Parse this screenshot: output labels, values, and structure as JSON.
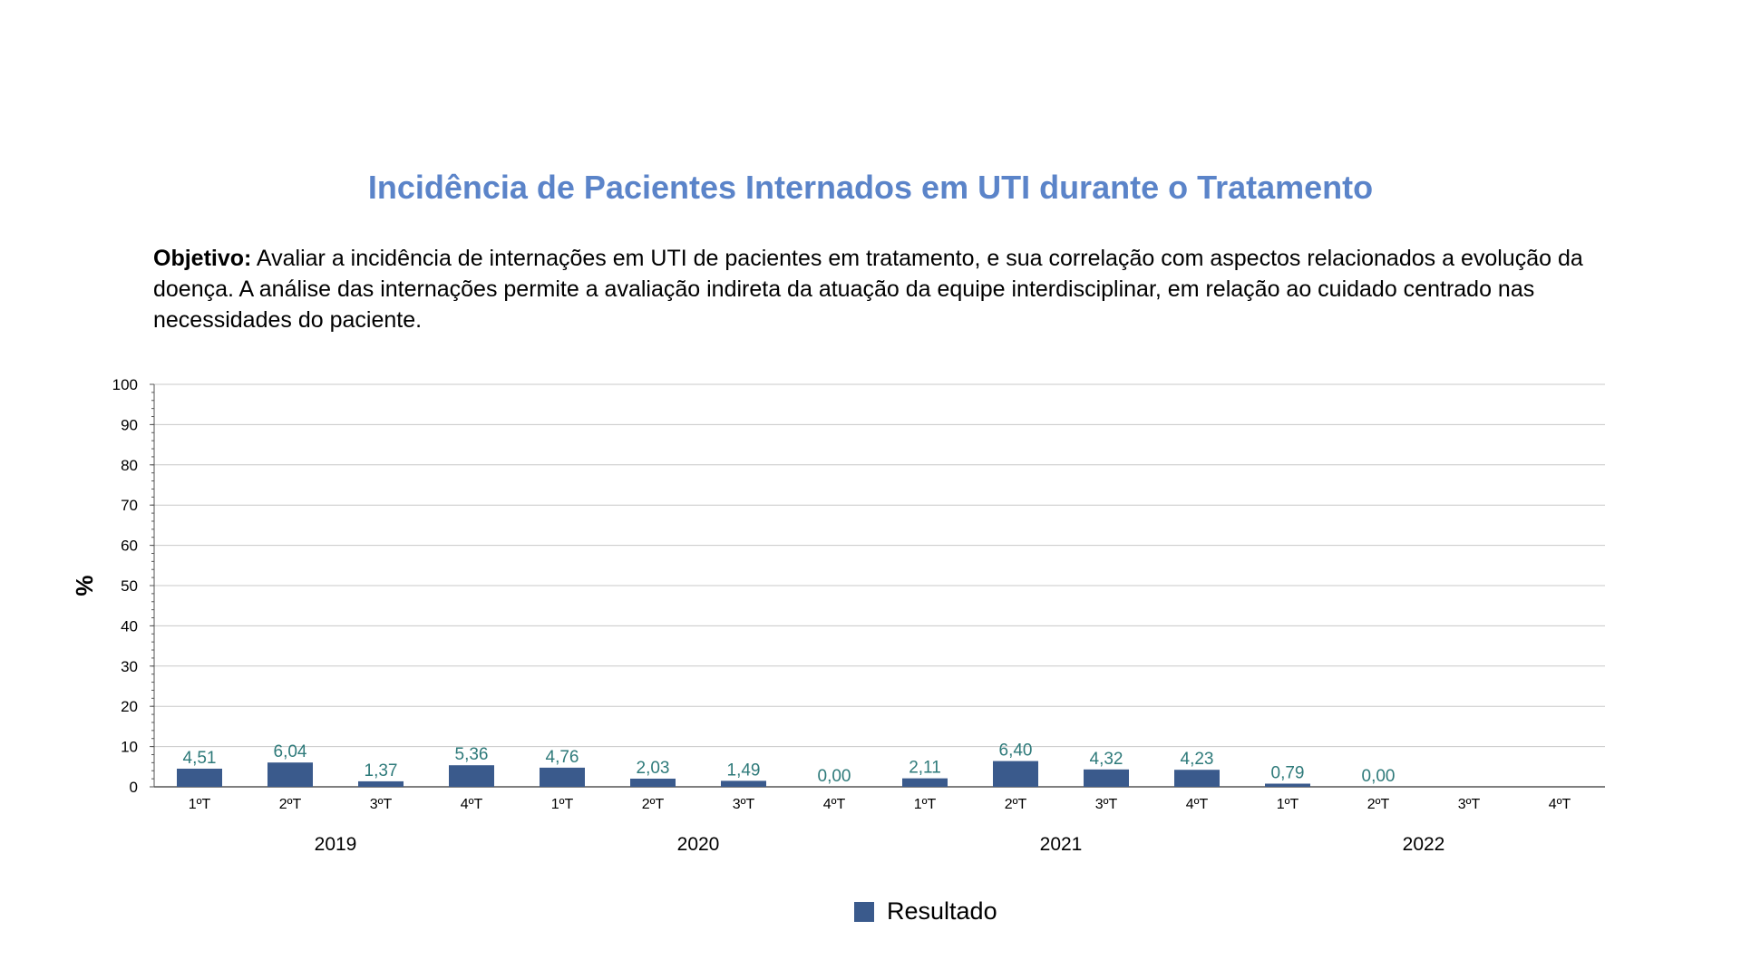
{
  "title": "Incidência de Pacientes Internados em UTI durante o Tratamento",
  "objective": {
    "label": "Objetivo:",
    "text": " Avaliar a incidência de internações em UTI de pacientes em tratamento, e sua correlação com aspectos relacionados a evolução da doença. A análise das internações permite a avaliação indireta da atuação da equipe interdisciplinar, em relação ao cuidado centrado nas necessidades do paciente."
  },
  "colors": {
    "title": "#5b84c9",
    "bar": "#3a5a8c",
    "data_label": "#2e7a7a",
    "grid": "#c8c8c8",
    "axis": "#555555"
  },
  "chart_data": {
    "type": "bar",
    "ylabel": "%",
    "ylim": [
      0,
      100
    ],
    "yticks": [
      0,
      10,
      20,
      30,
      40,
      50,
      60,
      70,
      80,
      90,
      100
    ],
    "grid": true,
    "legend_position": "bottom",
    "categories": [
      "1ºT",
      "2ºT",
      "3ºT",
      "4ºT",
      "1ºT",
      "2ºT",
      "3ºT",
      "4ºT",
      "1ºT",
      "2ºT",
      "3ºT",
      "4ºT",
      "1ºT",
      "2ºT",
      "3ºT",
      "4ºT"
    ],
    "groups": [
      {
        "label": "2019",
        "quarters": 4
      },
      {
        "label": "2020",
        "quarters": 4
      },
      {
        "label": "2021",
        "quarters": 4
      },
      {
        "label": "2022",
        "quarters": 4
      }
    ],
    "series": [
      {
        "name": "Resultado",
        "values": [
          4.51,
          6.04,
          1.37,
          5.36,
          4.76,
          2.03,
          1.49,
          0.0,
          2.11,
          6.4,
          4.32,
          4.23,
          0.79,
          0.0,
          null,
          null
        ],
        "labels": [
          "4,51",
          "6,04",
          "1,37",
          "5,36",
          "4,76",
          "2,03",
          "1,49",
          "0,00",
          "2,11",
          "6,40",
          "4,32",
          "4,23",
          "0,79",
          "0,00",
          "",
          ""
        ]
      }
    ]
  }
}
